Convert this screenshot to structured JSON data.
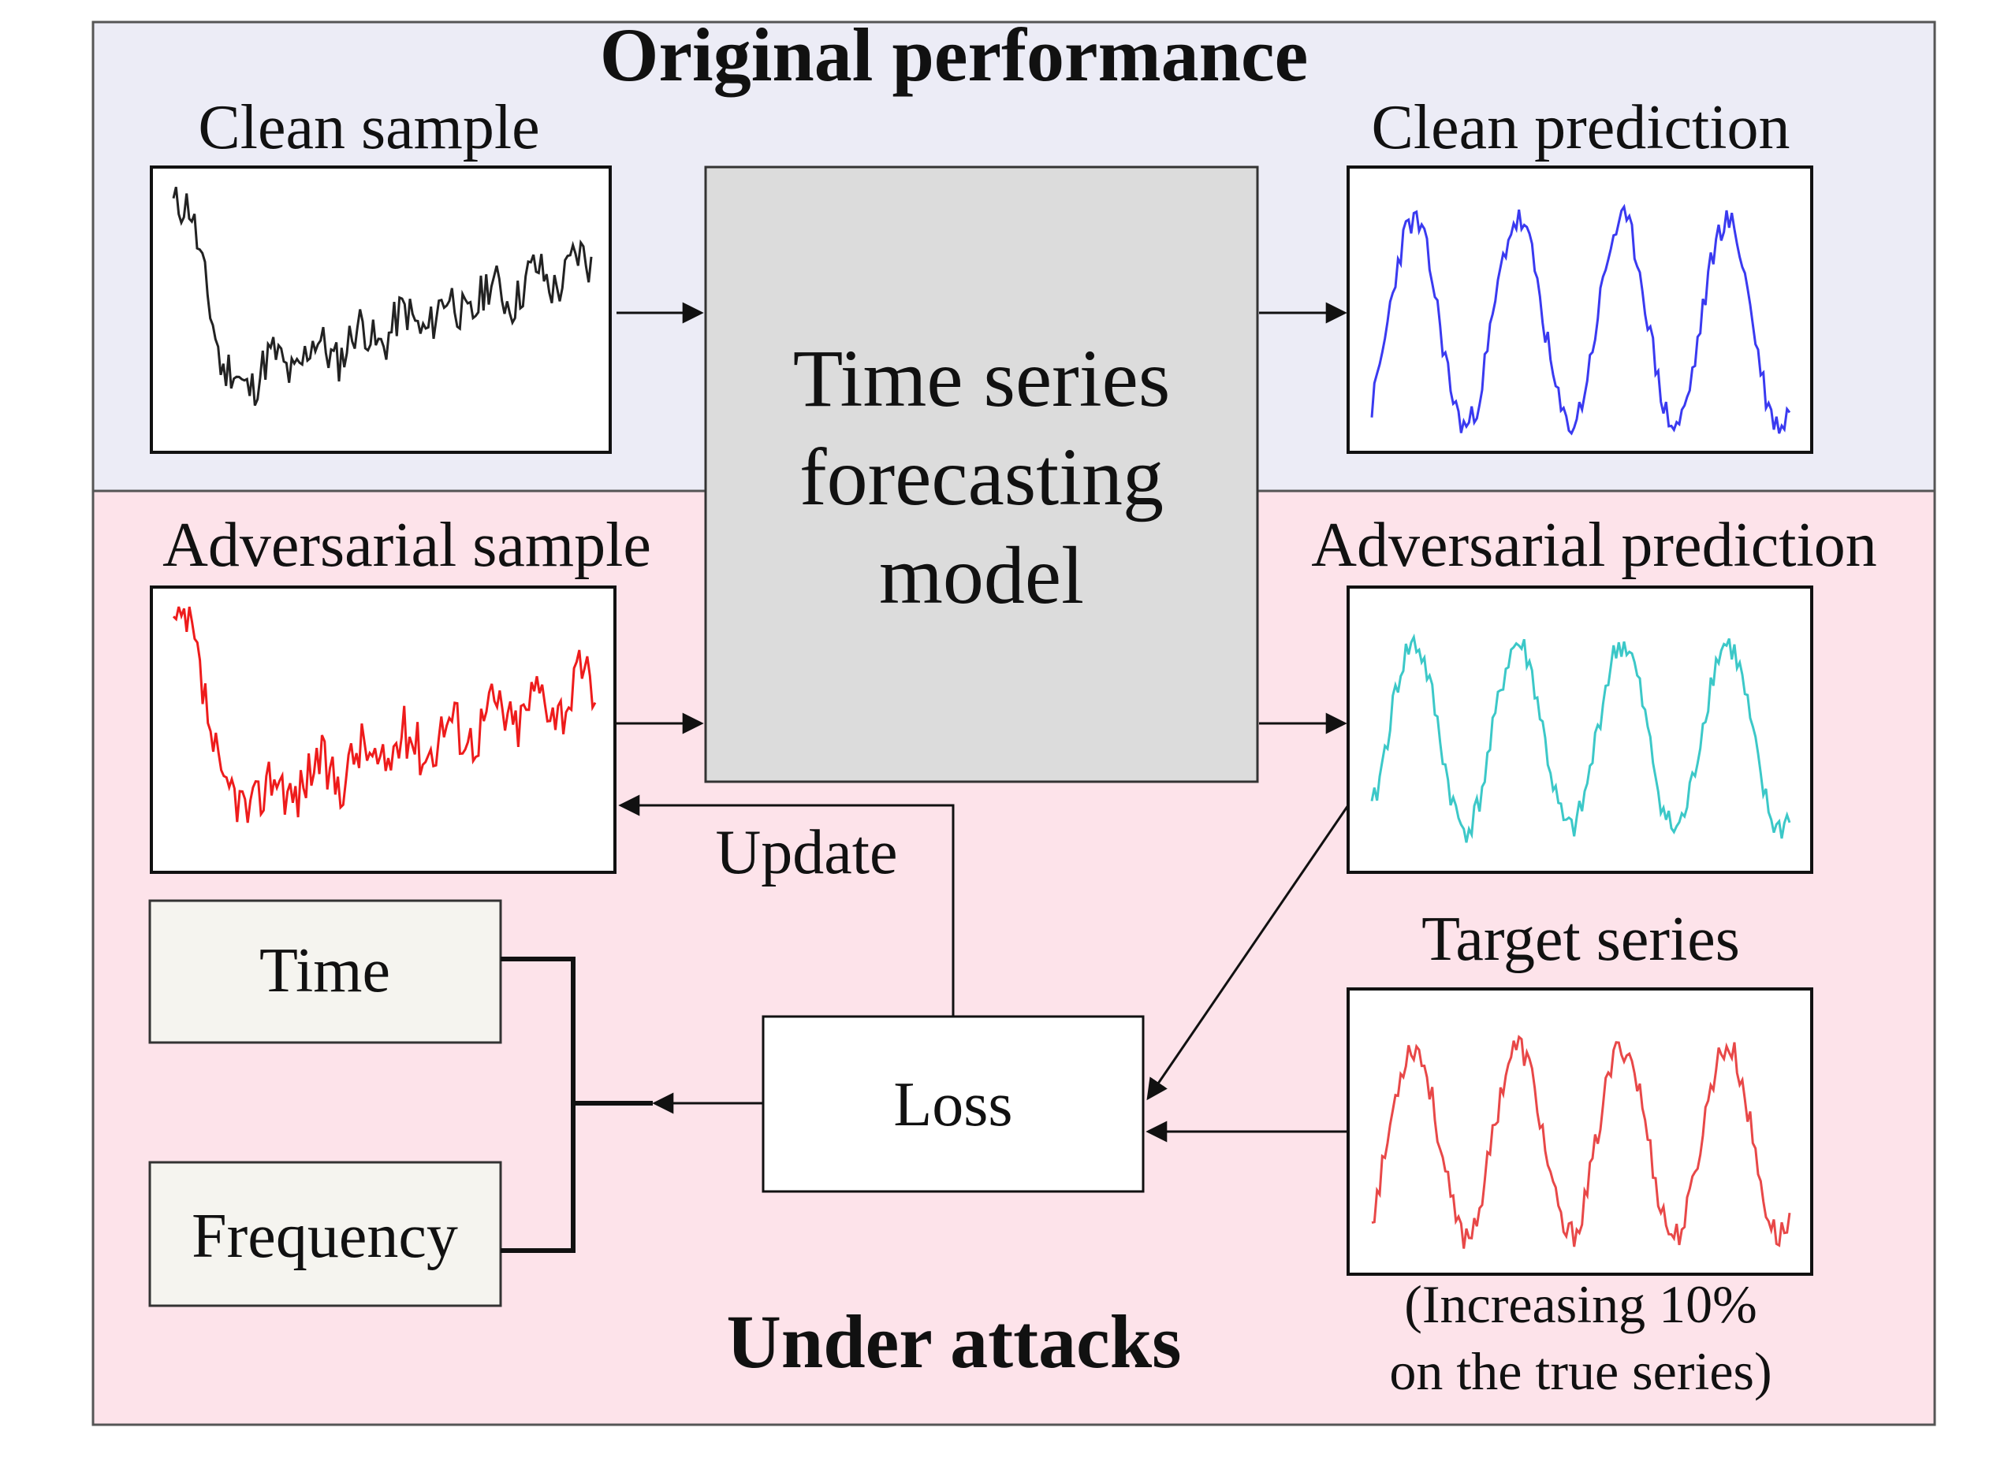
{
  "sections": {
    "top_title": "Original performance",
    "bottom_title": "Under attacks"
  },
  "panels": {
    "clean_sample": "Clean sample",
    "clean_prediction": "Clean prediction",
    "adversarial_sample": "Adversarial sample",
    "adversarial_prediction": "Adversarial prediction",
    "target_series": "Target series"
  },
  "model": {
    "line1": "Time series",
    "line2": "forecasting",
    "line3": "model"
  },
  "update_label": "Update",
  "loss_label": "Loss",
  "domain_boxes": {
    "time": "Time",
    "frequency": "Frequency"
  },
  "target_note": {
    "line1": "(Increasing 10%",
    "line2": "on the true series)"
  },
  "colors": {
    "top_bg": "#ececf6",
    "bottom_bg": "#fde3ea",
    "model_bg": "#dcdcdc",
    "domain_box_bg": "#f5f4ef",
    "clean_series": "#222222",
    "clean_prediction": "#3a3af0",
    "adversarial_series": "#ee1c1c",
    "adversarial_prediction": "#3cc8c8",
    "target_series": "#e84848"
  }
}
